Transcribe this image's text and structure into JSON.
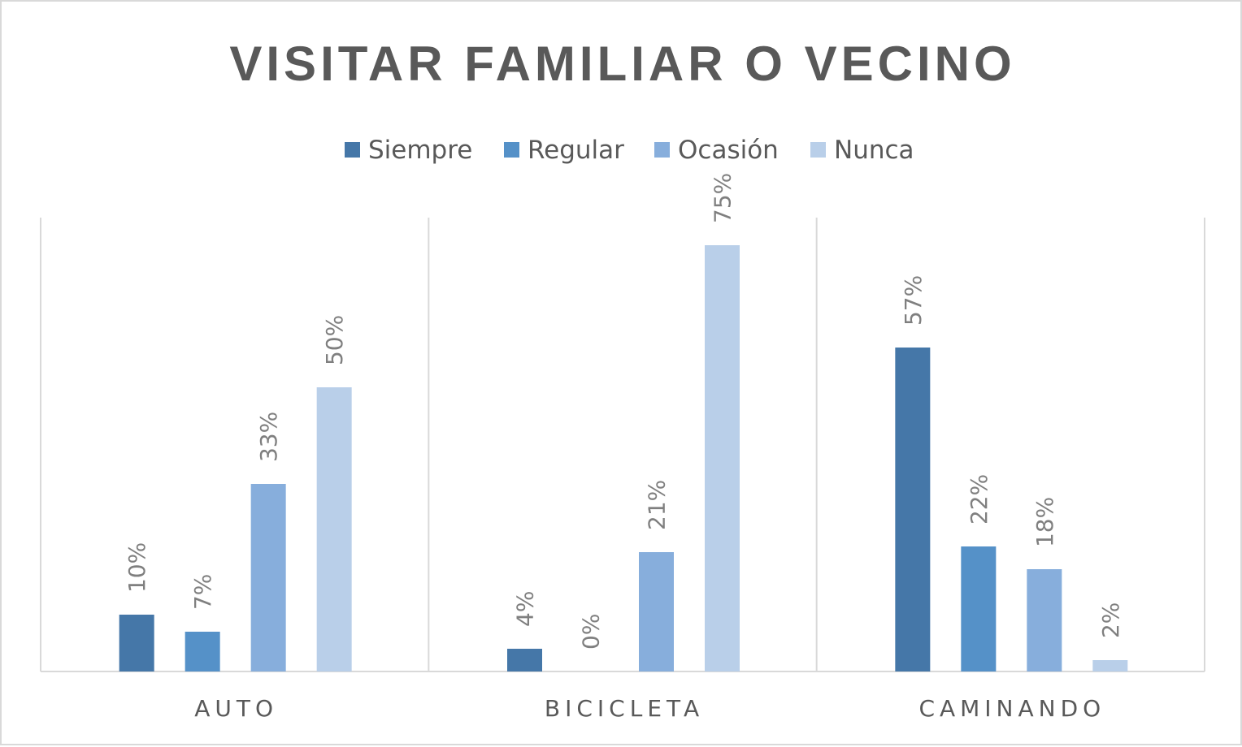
{
  "chart_data": {
    "type": "bar",
    "title": "VISITAR FAMILIAR O VECINO",
    "categories": [
      "AUTO",
      "BICICLETA",
      "CAMINANDO"
    ],
    "series": [
      {
        "name": "Siempre",
        "color": "#4577a8",
        "values": [
          10,
          4,
          57
        ],
        "labels": [
          "10%",
          "4%",
          "57%"
        ]
      },
      {
        "name": "Regular",
        "color": "#5591c8",
        "values": [
          7,
          0,
          22
        ],
        "labels": [
          "7%",
          "0%",
          "22%"
        ]
      },
      {
        "name": "Ocasión",
        "color": "#87aedc",
        "values": [
          33,
          21,
          18
        ],
        "labels": [
          "33%",
          "21%",
          "18%"
        ]
      },
      {
        "name": "Nunca",
        "color": "#b9cfe9",
        "values": [
          50,
          75,
          2
        ],
        "labels": [
          "50%",
          "75%",
          "2%"
        ]
      }
    ],
    "ylim": [
      0,
      80
    ],
    "legend": "top",
    "grid": false,
    "category_dividers": true
  }
}
